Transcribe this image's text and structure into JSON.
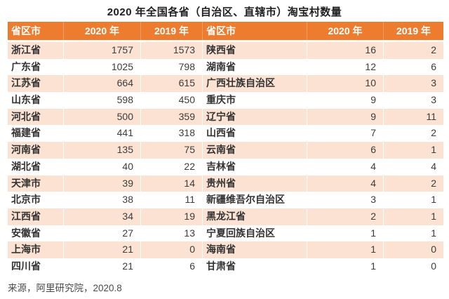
{
  "title": "2020 年全国各省（自治区、直辖市）淘宝村数量",
  "source": "来源，阿里研究院，2020.8",
  "colors": {
    "header_bg": "#ED7C2F",
    "header_text": "#FFFFFF",
    "row_alt_bg": "#FBE2D3",
    "body_text": "#3C3C3C",
    "source_text": "#4A4A4A"
  },
  "chart_data": {
    "type": "table",
    "title": "2020 年全国各省（自治区、直辖市）淘宝村数量",
    "columns": [
      "省区市",
      "2020 年",
      "2019 年",
      "省区市",
      "2020 年",
      "2019 年"
    ],
    "left_rows": [
      [
        "浙江省",
        1757,
        1573
      ],
      [
        "广东省",
        1025,
        798
      ],
      [
        "江苏省",
        664,
        615
      ],
      [
        "山东省",
        598,
        450
      ],
      [
        "河北省",
        500,
        359
      ],
      [
        "福建省",
        441,
        318
      ],
      [
        "河南省",
        135,
        75
      ],
      [
        "湖北省",
        40,
        22
      ],
      [
        "天津市",
        39,
        14
      ],
      [
        "北京市",
        38,
        11
      ],
      [
        "江西省",
        34,
        19
      ],
      [
        "安徽省",
        27,
        13
      ],
      [
        "上海市",
        21,
        0
      ],
      [
        "四川省",
        21,
        6
      ]
    ],
    "right_rows": [
      [
        "陕西省",
        16,
        2
      ],
      [
        "湖南省",
        12,
        6
      ],
      [
        "广西壮族自治区",
        10,
        3
      ],
      [
        "重庆市",
        9,
        3
      ],
      [
        "辽宁省",
        9,
        11
      ],
      [
        "山西省",
        7,
        2
      ],
      [
        "云南省",
        6,
        1
      ],
      [
        "吉林省",
        4,
        4
      ],
      [
        "贵州省",
        4,
        2
      ],
      [
        "新疆维吾尔自治区",
        3,
        1
      ],
      [
        "黑龙江省",
        2,
        1
      ],
      [
        "宁夏回族自治区",
        1,
        1
      ],
      [
        "海南省",
        1,
        0
      ],
      [
        "甘肃省",
        1,
        0
      ]
    ],
    "layout": {
      "stripes": true,
      "stripe_first_row": true,
      "two_column_layout": true
    }
  }
}
